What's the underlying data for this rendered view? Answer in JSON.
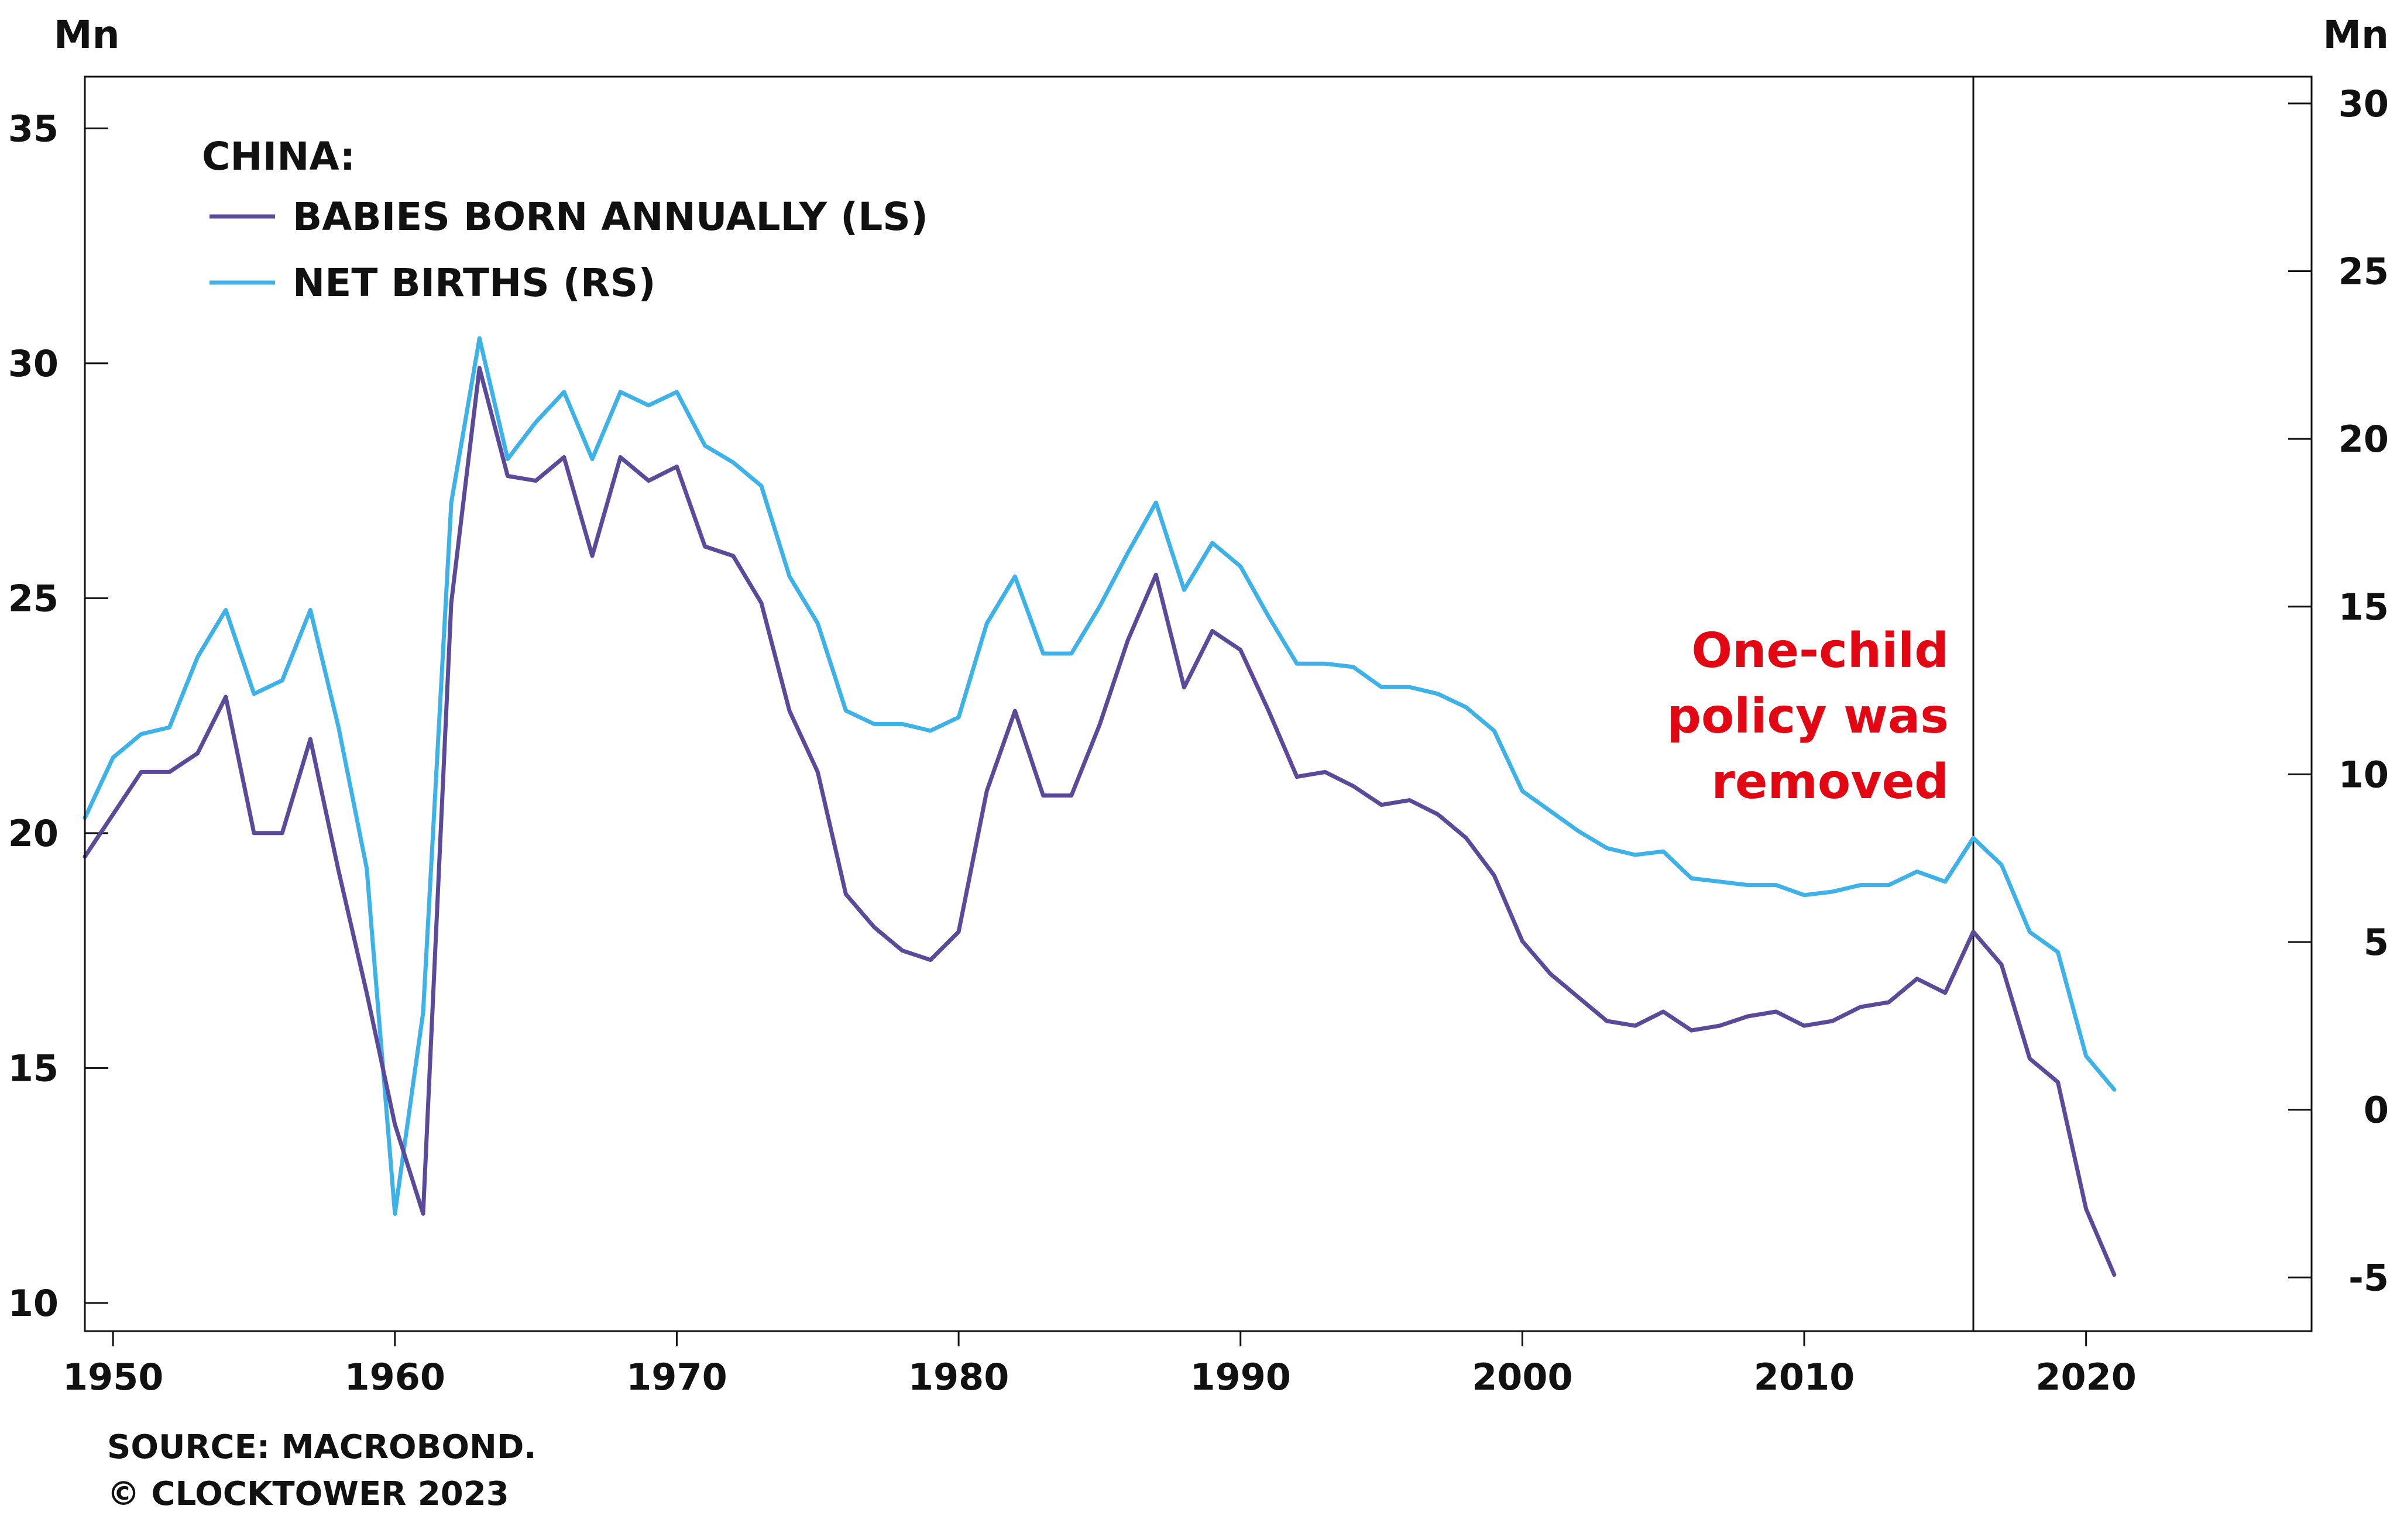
{
  "chart_data": {
    "type": "line",
    "left_unit": "Mn",
    "right_unit": "Mn",
    "legend": {
      "title": "CHINA:",
      "placement": "top-left",
      "entries": [
        {
          "label": "BABIES BORN ANNUALLY (LS)",
          "color": "#5b4a99"
        },
        {
          "label": "NET BIRTHS (RS)",
          "color": "#3db2e8"
        }
      ]
    },
    "x_ticks": [
      "1950",
      "1960",
      "1970",
      "1980",
      "1990",
      "2000",
      "2010",
      "2020"
    ],
    "x_tick_values": [
      1950,
      1960,
      1970,
      1980,
      1990,
      2000,
      2010,
      2020
    ],
    "xlim": [
      1949,
      2028
    ],
    "y_left_ticks": [
      "35",
      "30",
      "25",
      "20",
      "15",
      "10"
    ],
    "y_left_tick_values": [
      35,
      30,
      25,
      20,
      15,
      10
    ],
    "ylim_left": [
      9.4,
      36.1
    ],
    "y_right_ticks": [
      "30",
      "25",
      "20",
      "15",
      "10",
      "5",
      "0",
      "-5"
    ],
    "y_right_tick_values": [
      30,
      25,
      20,
      15,
      10,
      5,
      0,
      -5
    ],
    "ylim_right": [
      -6.6,
      30.8
    ],
    "grid": false,
    "series": [
      {
        "name": "BABIES BORN ANNUALLY (LS)",
        "axis": "left",
        "color": "#5b4a99",
        "x": [
          1949,
          1950,
          1951,
          1952,
          1953,
          1954,
          1955,
          1956,
          1957,
          1958,
          1959,
          1960,
          1961,
          1962,
          1963,
          1964,
          1965,
          1966,
          1967,
          1968,
          1969,
          1970,
          1971,
          1972,
          1973,
          1974,
          1975,
          1976,
          1977,
          1978,
          1979,
          1980,
          1981,
          1982,
          1983,
          1984,
          1985,
          1986,
          1987,
          1988,
          1989,
          1990,
          1991,
          1992,
          1993,
          1994,
          1995,
          1996,
          1997,
          1998,
          1999,
          2000,
          2001,
          2002,
          2003,
          2004,
          2005,
          2006,
          2007,
          2008,
          2009,
          2010,
          2011,
          2012,
          2013,
          2014,
          2015,
          2016,
          2017,
          2018,
          2019,
          2020,
          2021
        ],
        "y": [
          19.5,
          20.4,
          21.3,
          21.3,
          21.7,
          22.9,
          20.0,
          20.0,
          22.0,
          19.2,
          16.6,
          13.8,
          11.9,
          24.9,
          29.9,
          27.6,
          27.5,
          28.0,
          25.9,
          28.0,
          27.5,
          27.8,
          26.1,
          25.9,
          24.9,
          22.6,
          21.3,
          18.7,
          18.0,
          17.5,
          17.3,
          17.9,
          20.9,
          22.6,
          20.8,
          20.8,
          22.3,
          24.1,
          25.5,
          23.1,
          24.3,
          23.9,
          22.6,
          21.2,
          21.3,
          21.0,
          20.6,
          20.7,
          20.4,
          19.9,
          19.1,
          17.7,
          17.0,
          16.5,
          16.0,
          15.9,
          16.2,
          15.8,
          15.9,
          16.1,
          16.2,
          15.9,
          16.0,
          16.3,
          16.4,
          16.9,
          16.6,
          17.9,
          17.2,
          15.2,
          14.7,
          12.0,
          10.6
        ]
      },
      {
        "name": "NET BIRTHS (RS)",
        "axis": "right",
        "color": "#3db2e8",
        "x": [
          1949,
          1950,
          1951,
          1952,
          1953,
          1954,
          1955,
          1956,
          1957,
          1958,
          1959,
          1960,
          1961,
          1962,
          1963,
          1964,
          1965,
          1966,
          1967,
          1968,
          1969,
          1970,
          1971,
          1972,
          1973,
          1974,
          1975,
          1976,
          1977,
          1978,
          1979,
          1980,
          1981,
          1982,
          1983,
          1984,
          1985,
          1986,
          1987,
          1988,
          1989,
          1990,
          1991,
          1992,
          1993,
          1994,
          1995,
          1996,
          1997,
          1998,
          1999,
          2000,
          2001,
          2002,
          2003,
          2004,
          2005,
          2006,
          2007,
          2008,
          2009,
          2010,
          2011,
          2012,
          2013,
          2014,
          2015,
          2016,
          2017,
          2018,
          2019,
          2020,
          2021
        ],
        "y": [
          8.7,
          10.5,
          11.2,
          11.4,
          13.5,
          14.9,
          12.4,
          12.8,
          14.9,
          11.4,
          7.2,
          -3.1,
          2.9,
          18.1,
          23.0,
          19.4,
          20.5,
          21.4,
          19.4,
          21.4,
          21.0,
          21.4,
          19.8,
          19.3,
          18.6,
          15.9,
          14.5,
          11.9,
          11.5,
          11.5,
          11.3,
          11.7,
          14.5,
          15.9,
          13.6,
          13.6,
          15.0,
          16.6,
          18.1,
          15.5,
          16.9,
          16.2,
          14.7,
          13.3,
          13.3,
          13.2,
          12.6,
          12.6,
          12.4,
          12.0,
          11.3,
          9.5,
          8.9,
          8.3,
          7.8,
          7.6,
          7.7,
          6.9,
          6.8,
          6.7,
          6.7,
          6.4,
          6.5,
          6.7,
          6.7,
          7.1,
          6.8,
          8.1,
          7.3,
          5.3,
          4.7,
          1.6,
          0.6
        ]
      }
    ],
    "annotation": {
      "lines": [
        "One-child",
        "policy was",
        "removed"
      ],
      "x": 2016,
      "color": "#e30613"
    },
    "source": "SOURCE: MACROBOND.",
    "copyright": "© CLOCKTOWER 2023"
  }
}
